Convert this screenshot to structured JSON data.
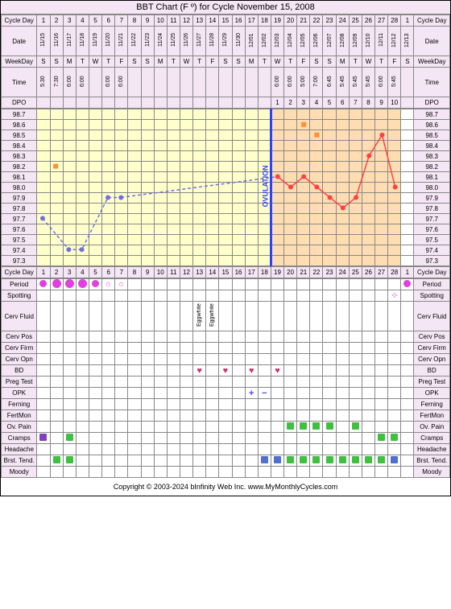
{
  "title": "BBT Chart (F º) for Cycle November 15, 2008",
  "footer": "Copyright © 2003-2024 bInfinity Web Inc.    www.MyMonthlyCycles.com",
  "labels": {
    "cycleDay": "Cycle Day",
    "date": "Date",
    "weekday": "WeekDay",
    "time": "Time",
    "dpo": "DPO",
    "period": "Period",
    "spotting": "Spotting",
    "cervFluid": "Cerv Fluid",
    "cervPos": "Cerv Pos",
    "cervFirm": "Cerv Firm",
    "cervOpn": "Cerv Opn",
    "bd": "BD",
    "pregTest": "Preg Test",
    "opk": "OPK",
    "ferning": "Ferning",
    "fertMon": "FertMon",
    "ovPain": "Ov. Pain",
    "cramps": "Cramps",
    "headache": "Headache",
    "brstTend": "Brst. Tend.",
    "moody": "Moody",
    "ovulation": "OVULATION"
  },
  "days": [
    "1",
    "2",
    "3",
    "4",
    "5",
    "6",
    "7",
    "8",
    "9",
    "10",
    "11",
    "12",
    "13",
    "14",
    "15",
    "16",
    "17",
    "18",
    "19",
    "20",
    "21",
    "22",
    "23",
    "24",
    "25",
    "26",
    "27",
    "28",
    "1"
  ],
  "dates": [
    "11/15",
    "11/16",
    "11/17",
    "11/18",
    "11/19",
    "11/20",
    "11/21",
    "11/22",
    "11/23",
    "11/24",
    "11/25",
    "11/26",
    "11/27",
    "11/28",
    "11/29",
    "11/30",
    "12/01",
    "12/02",
    "12/03",
    "12/04",
    "12/05",
    "12/06",
    "12/07",
    "12/08",
    "12/09",
    "12/10",
    "12/11",
    "12/12",
    "12/13"
  ],
  "weekdays": [
    "S",
    "S",
    "M",
    "T",
    "W",
    "T",
    "F",
    "S",
    "S",
    "M",
    "T",
    "W",
    "T",
    "F",
    "S",
    "S",
    "M",
    "T",
    "W",
    "T",
    "F",
    "S",
    "S",
    "M",
    "T",
    "W",
    "T",
    "F",
    "S"
  ],
  "times": [
    "5:30",
    "7:30",
    "6:00",
    "6:00",
    "",
    "6:00",
    "6:00",
    "",
    "",
    "",
    "",
    "",
    "",
    "",
    "",
    "",
    "",
    "",
    "6:00",
    "6:00",
    "5:00",
    "7:00",
    "6:45",
    "5:45",
    "5:45",
    "5:45",
    "6:00",
    "5:45",
    ""
  ],
  "dpo": [
    "",
    "",
    "",
    "",
    "",
    "",
    "",
    "",
    "",
    "",
    "",
    "",
    "",
    "",
    "",
    "",
    "",
    "",
    "1",
    "2",
    "3",
    "4",
    "5",
    "6",
    "7",
    "8",
    "9",
    "10",
    ""
  ],
  "temps": [
    "98.7",
    "98.6",
    "98.5",
    "98.4",
    "98.3",
    "98.2",
    "98.1",
    "98.0",
    "97.9",
    "97.8",
    "97.7",
    "97.6",
    "97.5",
    "97.4",
    "97.3"
  ],
  "tempData": {
    "pre": [
      {
        "d": 1,
        "t": 97.7
      },
      {
        "d": 3,
        "t": 97.4
      },
      {
        "d": 4,
        "t": 97.4
      },
      {
        "d": 6,
        "t": 97.9
      },
      {
        "d": 7,
        "t": 97.9
      }
    ],
    "post": [
      {
        "d": 19,
        "t": 98.1
      },
      {
        "d": 20,
        "t": 98.0
      },
      {
        "d": 21,
        "t": 98.1
      },
      {
        "d": 22,
        "t": 98.0
      },
      {
        "d": 23,
        "t": 97.9
      },
      {
        "d": 24,
        "t": 97.8
      },
      {
        "d": 25,
        "t": 97.9
      },
      {
        "d": 26,
        "t": 98.3
      },
      {
        "d": 27,
        "t": 98.5
      },
      {
        "d": 28,
        "t": 98.0
      }
    ],
    "extra": [
      {
        "d": 21,
        "t": 98.6
      },
      {
        "d": 22,
        "t": 98.5
      }
    ]
  },
  "ovulationDay": 18,
  "colors": {
    "preLine": "#7070e0",
    "postLine": "#ff4040",
    "ovLine": "#3040ff",
    "preBg": "#ffffcc",
    "postBg": "#ffddb3",
    "heavyPeriod": "#e040e0",
    "medPeriod": "#e040e0",
    "spotting": "#ff60e0",
    "heart": "#cc3366",
    "opkPlus": "#4040ff",
    "opkMinus": "#4040ff",
    "green": "#40c040",
    "purple": "#8040c0",
    "blue": "#5070d0",
    "orange": "#ff9030"
  },
  "period": [
    {
      "d": 1,
      "v": "●"
    },
    {
      "d": 2,
      "v": "●"
    },
    {
      "d": 3,
      "v": "●"
    },
    {
      "d": 4,
      "v": "●"
    },
    {
      "d": 5,
      "v": "◦"
    },
    {
      "d": 6,
      "v": "·"
    },
    {
      "d": 7,
      "v": "·"
    },
    {
      "d": 29,
      "v": "●"
    }
  ],
  "periodSizes": {
    "1": 9,
    "2": 11,
    "3": 11,
    "4": 11,
    "5": 9,
    "6": 7,
    "7": 7,
    "29": 9
  },
  "spotting": [
    {
      "d": 28,
      "v": "⁘"
    }
  ],
  "cervFluid": [
    {
      "d": 13,
      "v": "Eggwhite"
    },
    {
      "d": 14,
      "v": "Eggwhite"
    }
  ],
  "bd": [
    {
      "d": 13,
      "v": "♥"
    },
    {
      "d": 15,
      "v": "♥"
    },
    {
      "d": 17,
      "v": "♥"
    },
    {
      "d": 19,
      "v": "♥"
    }
  ],
  "opk": [
    {
      "d": 17,
      "v": "+"
    },
    {
      "d": 18,
      "v": "−"
    }
  ],
  "ovPain": [
    {
      "d": 20,
      "c": "green"
    },
    {
      "d": 21,
      "c": "green"
    },
    {
      "d": 22,
      "c": "green"
    },
    {
      "d": 23,
      "c": "green"
    },
    {
      "d": 25,
      "c": "green"
    }
  ],
  "cramps": [
    {
      "d": 1,
      "c": "purple"
    },
    {
      "d": 3,
      "c": "green"
    },
    {
      "d": 27,
      "c": "green"
    },
    {
      "d": 28,
      "c": "green"
    }
  ],
  "brstTend": [
    {
      "d": 2,
      "c": "green"
    },
    {
      "d": 3,
      "c": "green"
    },
    {
      "d": 18,
      "c": "blue"
    },
    {
      "d": 19,
      "c": "blue"
    },
    {
      "d": 20,
      "c": "green"
    },
    {
      "d": 21,
      "c": "green"
    },
    {
      "d": 22,
      "c": "green"
    },
    {
      "d": 23,
      "c": "green"
    },
    {
      "d": 24,
      "c": "green"
    },
    {
      "d": 25,
      "c": "green"
    },
    {
      "d": 26,
      "c": "green"
    },
    {
      "d": 27,
      "c": "green"
    },
    {
      "d": 28,
      "c": "blue"
    }
  ],
  "chartGeom": {
    "leftLabelW": 44,
    "rightLabelW": 44,
    "cellW": 16.27,
    "cellH": 13,
    "tempMin": 97.3,
    "tempMax": 98.7,
    "rows": 15
  }
}
